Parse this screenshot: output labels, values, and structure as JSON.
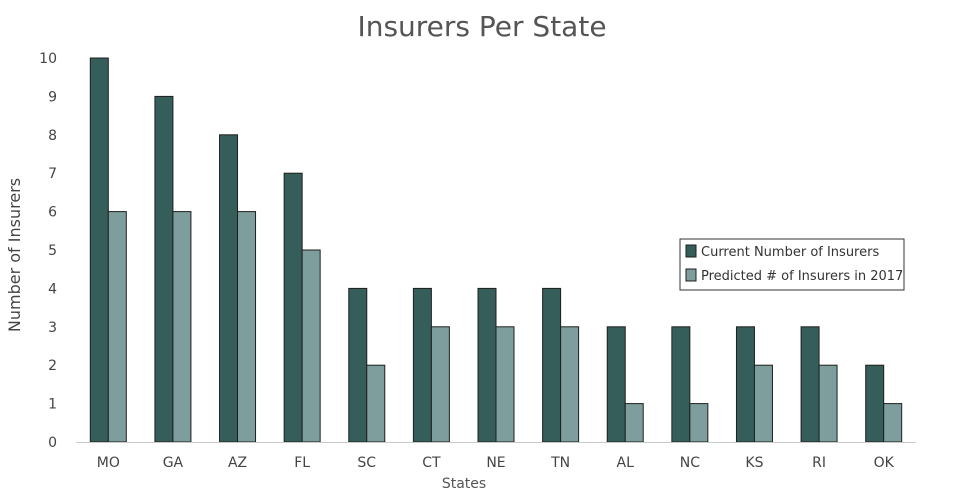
{
  "chart_data": {
    "type": "bar",
    "title": "Insurers Per State",
    "xlabel": "States",
    "ylabel": "Number of Insurers",
    "ylim": [
      0,
      10
    ],
    "yticks": [
      0,
      1,
      2,
      3,
      4,
      5,
      6,
      7,
      8,
      9,
      10
    ],
    "grid": false,
    "legend_position": "right",
    "categories": [
      "MO",
      "GA",
      "AZ",
      "FL",
      "SC",
      "CT",
      "NE",
      "TN",
      "AL",
      "NC",
      "KS",
      "RI",
      "OK"
    ],
    "series": [
      {
        "name": "Current Number of Insurers",
        "color": "#355e5a",
        "values": [
          10,
          9,
          8,
          7,
          4,
          4,
          4,
          4,
          3,
          3,
          3,
          3,
          2
        ]
      },
      {
        "name": "Predicted # of Insurers in 2017",
        "color": "#7d9e9c",
        "values": [
          6,
          6,
          6,
          5,
          2,
          3,
          3,
          3,
          1,
          1,
          2,
          2,
          1
        ]
      }
    ]
  }
}
